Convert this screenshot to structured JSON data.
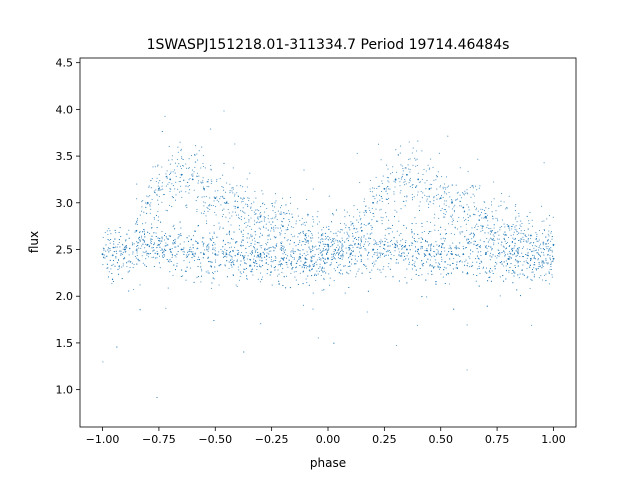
{
  "chart_data": {
    "type": "scatter",
    "title": "1SWASPJ151218.01-311334.7 Period 19714.46484s",
    "xlabel": "phase",
    "ylabel": "flux",
    "xlim": [
      -1.1,
      1.1
    ],
    "ylim": [
      0.6,
      4.55
    ],
    "xticks": [
      -1.0,
      -0.75,
      -0.5,
      -0.25,
      0.0,
      0.25,
      0.5,
      0.75,
      1.0
    ],
    "xtick_labels": [
      "−1.00",
      "−0.75",
      "−0.50",
      "−0.25",
      "0.00",
      "0.25",
      "0.50",
      "0.75",
      "1.00"
    ],
    "yticks": [
      1.0,
      1.5,
      2.0,
      2.5,
      3.0,
      3.5,
      4.0,
      4.5
    ],
    "ytick_labels": [
      "1.0",
      "1.5",
      "2.0",
      "2.5",
      "3.0",
      "3.5",
      "4.0",
      "4.5"
    ],
    "grid": false,
    "legend": "none",
    "point_color": "#1f77b4",
    "series": [
      {
        "x": [
          -1.0,
          -0.9,
          -0.8,
          -0.75,
          -0.7,
          -0.65,
          -0.6,
          -0.55,
          -0.5,
          -0.45,
          -0.4,
          -0.3,
          -0.2,
          -0.1,
          0.0,
          0.1,
          0.2,
          0.25,
          0.3,
          0.35,
          0.4,
          0.45,
          0.5,
          0.55,
          0.6,
          0.7,
          0.8,
          0.9,
          1.0
        ],
        "y": [
          2.45,
          2.5,
          2.55,
          2.55,
          2.5,
          2.5,
          2.45,
          2.45,
          2.45,
          2.45,
          2.45,
          2.45,
          2.4,
          2.4,
          2.4,
          2.45,
          2.5,
          2.55,
          2.55,
          2.5,
          2.5,
          2.45,
          2.45,
          2.45,
          2.45,
          2.45,
          2.4,
          2.4,
          2.4
        ]
      },
      {
        "x": [
          -0.85,
          -0.8,
          -0.75,
          -0.7,
          -0.65,
          -0.6,
          -0.55,
          -0.5,
          -0.45,
          -0.4,
          -0.3,
          -0.2,
          -0.1,
          0.0,
          0.15,
          0.2,
          0.25,
          0.3,
          0.35,
          0.4,
          0.45,
          0.5,
          0.55,
          0.6,
          0.7,
          0.8,
          0.9,
          1.0
        ],
        "y": [
          2.7,
          3.0,
          3.15,
          3.25,
          3.3,
          3.25,
          3.15,
          3.05,
          3.0,
          2.95,
          2.85,
          2.75,
          2.65,
          2.55,
          2.7,
          3.0,
          3.15,
          3.25,
          3.3,
          3.25,
          3.15,
          3.05,
          3.0,
          2.95,
          2.85,
          2.75,
          2.65,
          2.55
        ]
      }
    ]
  }
}
